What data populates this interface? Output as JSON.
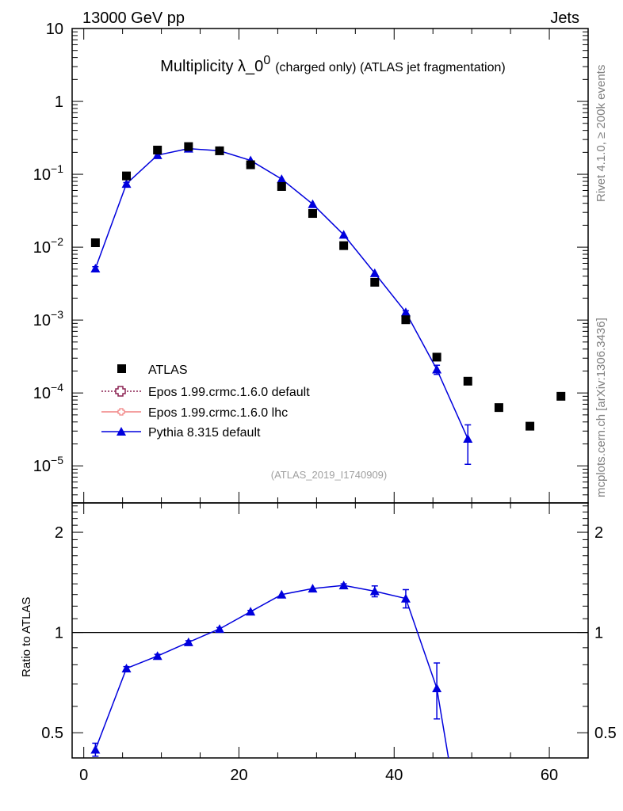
{
  "header": {
    "left": "13000 GeV pp",
    "right": "Jets"
  },
  "title": {
    "main": "Multiplicity λ_0",
    "superscript": "0",
    "suffix": "(charged only) (ATLAS jet fragmentation)"
  },
  "side_labels": {
    "rivet": "Rivet 4.1.0, ≥ 200k events",
    "mcplots": "mcplots.cern.ch [arXiv:1306.3436]"
  },
  "analysis_id": "(ATLAS_2019_I1740909)",
  "ratio_ylabel": "Ratio to ATLAS",
  "legend": {
    "items": [
      {
        "label": "ATLAS",
        "marker": "square",
        "color": "#000000"
      },
      {
        "label": "Epos 1.99.crmc.1.6.0 default",
        "marker": "open-cross",
        "color": "#8b2252"
      },
      {
        "label": "Epos 1.99.crmc.1.6.0 lhc",
        "marker": "small-cross",
        "color": "#f08080"
      },
      {
        "label": "Pythia 8.315 default",
        "marker": "triangle",
        "color": "#0000dd"
      }
    ]
  },
  "axis_text": {
    "main_y_ticks": [
      {
        "label": "10",
        "exp": "",
        "value": 10
      },
      {
        "label": "1",
        "exp": "",
        "value": 1
      },
      {
        "label": "10",
        "exp": "−1",
        "value": 0.1
      },
      {
        "label": "10",
        "exp": "−2",
        "value": 0.01
      },
      {
        "label": "10",
        "exp": "−3",
        "value": 0.001
      },
      {
        "label": "10",
        "exp": "−4",
        "value": 0.0001
      },
      {
        "label": "10",
        "exp": "−5",
        "value": 1e-05
      }
    ],
    "ratio_y_ticks": [
      {
        "label": "2",
        "value": 2
      },
      {
        "label": "1",
        "value": 1
      },
      {
        "label": "0.5",
        "value": 0.5
      }
    ],
    "x_ticks": [
      {
        "label": "0",
        "value": 0
      },
      {
        "label": "20",
        "value": 20
      },
      {
        "label": "40",
        "value": 40
      },
      {
        "label": "60",
        "value": 60
      }
    ]
  },
  "chart_data": [
    {
      "type": "scatter",
      "panel": "main",
      "yscale": "log",
      "xlim": [
        -1.5,
        65
      ],
      "ylim": [
        3.1e-06,
        10
      ],
      "x": [
        1.5,
        5.5,
        9.5,
        13.5,
        17.5,
        21.5,
        25.5,
        29.5,
        33.5,
        37.5,
        41.5,
        45.5,
        49.5,
        53.5,
        57.5,
        61.5
      ],
      "series": [
        {
          "name": "ATLAS",
          "style": "markers",
          "color": "#000000",
          "values": [
            0.0115,
            0.095,
            0.215,
            0.24,
            0.21,
            0.135,
            0.068,
            0.029,
            0.0105,
            0.0033,
            0.00101,
            0.00031,
            0.000145,
            6.3e-05,
            3.5e-05,
            9e-05
          ]
        },
        {
          "name": "Pythia 8.315 default",
          "style": "line+markers",
          "color": "#0000dd",
          "values": [
            0.0051,
            0.074,
            0.183,
            0.225,
            0.21,
            0.155,
            0.086,
            0.039,
            0.0148,
            0.0044,
            0.00128,
            0.00021,
            2.35e-05
          ],
          "errors": [
            0.0003,
            0.003,
            0.005,
            0.005,
            0.005,
            0.004,
            0.002,
            0.001,
            0.0004,
            0.00015,
            6e-05,
            3e-05,
            1.3e-05
          ]
        }
      ]
    },
    {
      "type": "line",
      "panel": "ratio",
      "yscale": "log",
      "xlim": [
        -1.5,
        65
      ],
      "ylim": [
        0.42,
        2.45
      ],
      "ylabel": "Ratio to ATLAS",
      "reference": 1,
      "x": [
        1.5,
        5.5,
        9.5,
        13.5,
        17.5,
        21.5,
        25.5,
        29.5,
        33.5,
        37.5,
        41.5,
        45.5,
        47.0
      ],
      "series": [
        {
          "name": "Pythia 8.315 default",
          "color": "#0000dd",
          "values": [
            0.445,
            0.78,
            0.85,
            0.935,
            1.025,
            1.155,
            1.3,
            1.355,
            1.385,
            1.33,
            1.265,
            0.68,
            0.42
          ],
          "errors": [
            0.02,
            0.01,
            0.01,
            0.01,
            0.01,
            0.01,
            0.01,
            0.01,
            0.015,
            0.05,
            0.08,
            0.13,
            0
          ],
          "markers": [
            true,
            true,
            true,
            true,
            true,
            true,
            true,
            true,
            true,
            true,
            true,
            true,
            false
          ]
        }
      ]
    }
  ]
}
